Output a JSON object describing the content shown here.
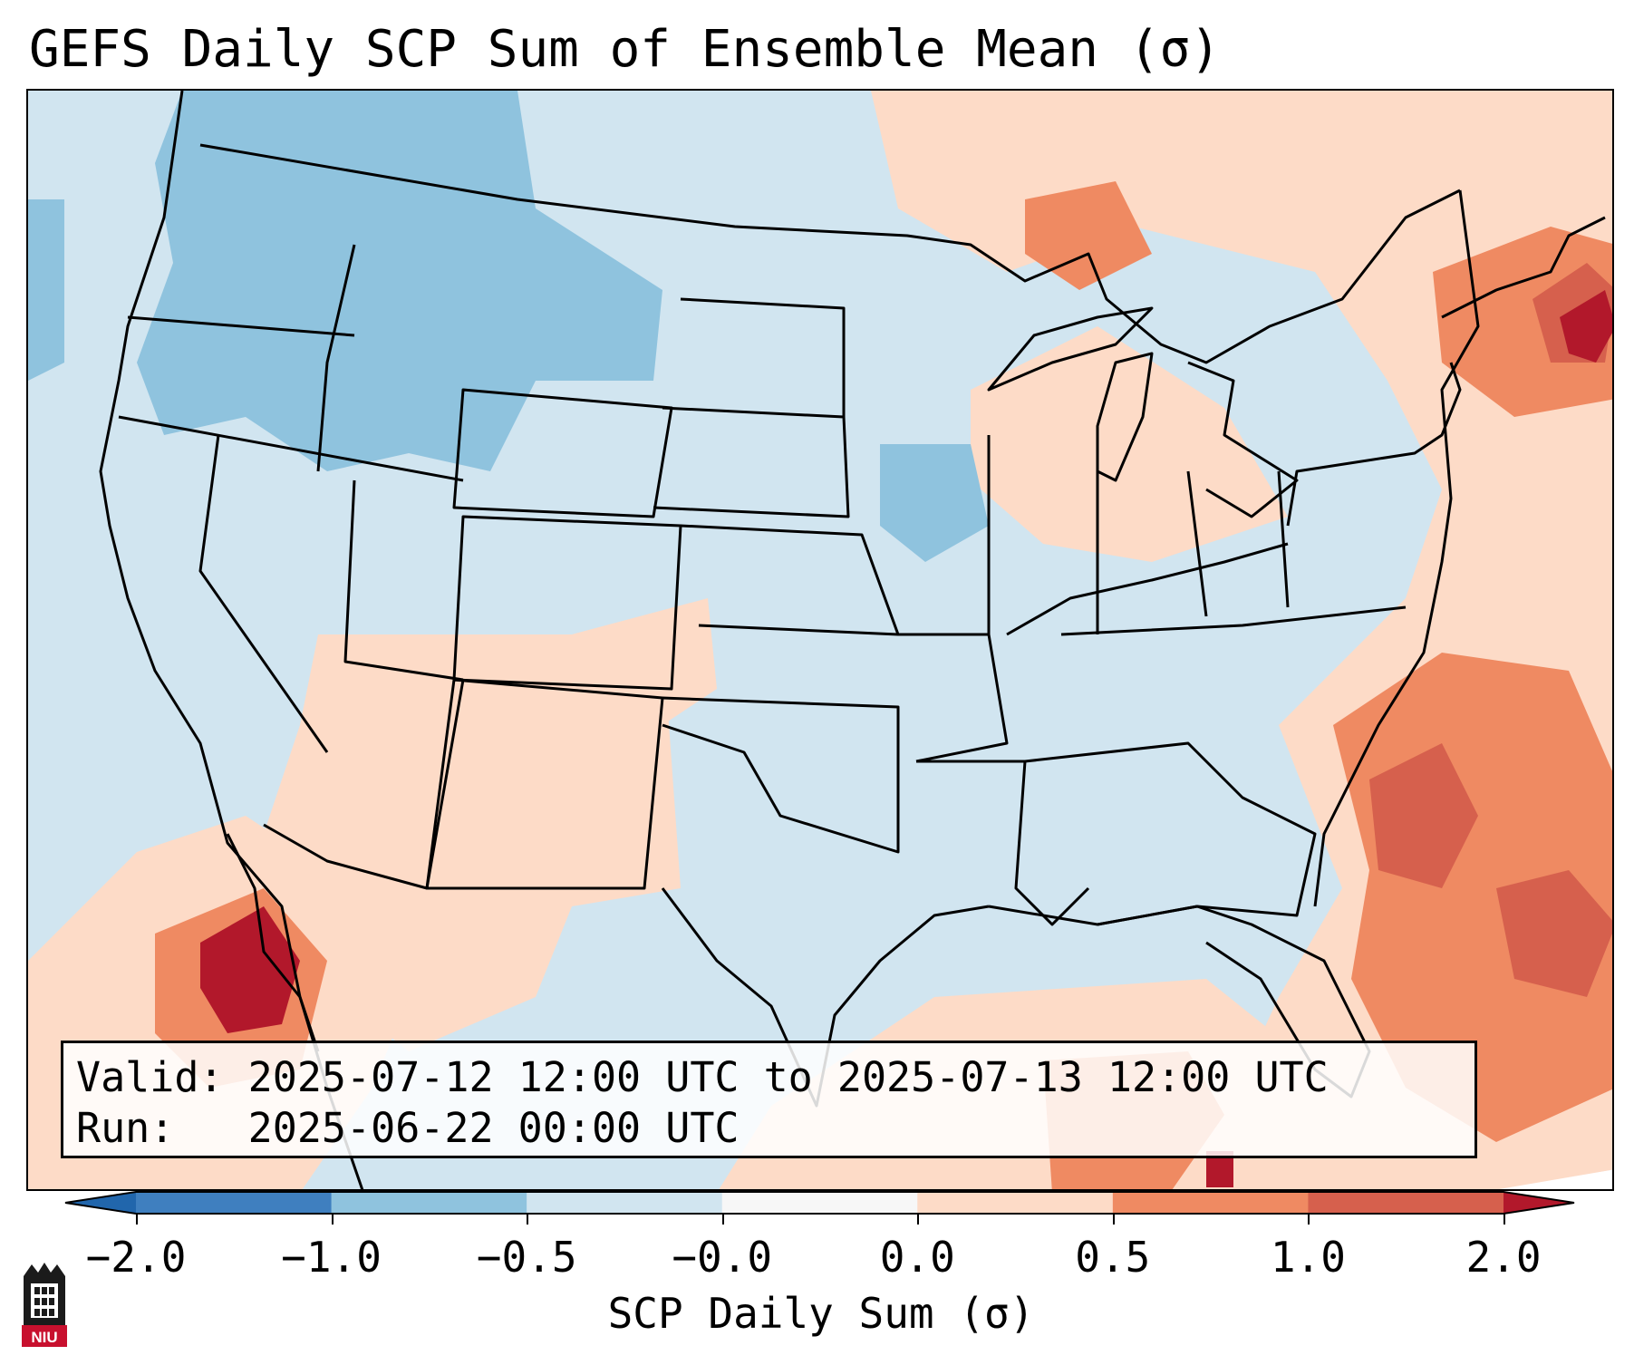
{
  "title": "GEFS Daily SCP Sum of Ensemble Mean (σ)",
  "info": {
    "valid_label": "Valid:",
    "valid_value": "2025-07-12 12:00 UTC to 2025-07-13 12:00 UTC",
    "run_label": "Run:",
    "run_value": "2025-06-22 00:00 UTC"
  },
  "colorbar": {
    "label": "SCP Daily Sum (σ)",
    "ticks": [
      "−2.0",
      "−1.0",
      "−0.5",
      "−0.0",
      "0.0",
      "0.5",
      "1.0",
      "2.0"
    ],
    "bins": [
      {
        "color": "#3f7fbf"
      },
      {
        "color": "#8fc3de"
      },
      {
        "color": "#d1e5f0"
      },
      {
        "color": "#f7f7f7"
      },
      {
        "color": "#fddbc7"
      },
      {
        "color": "#ef8a62"
      },
      {
        "color": "#d6604d"
      }
    ],
    "under_color": "#2166ac",
    "over_color": "#b2182b"
  },
  "map": {
    "background_color": "#d1e5f0",
    "outline_color": "#000000"
  },
  "logo": {
    "text": "NIU",
    "icon": "university-tower-icon"
  }
}
